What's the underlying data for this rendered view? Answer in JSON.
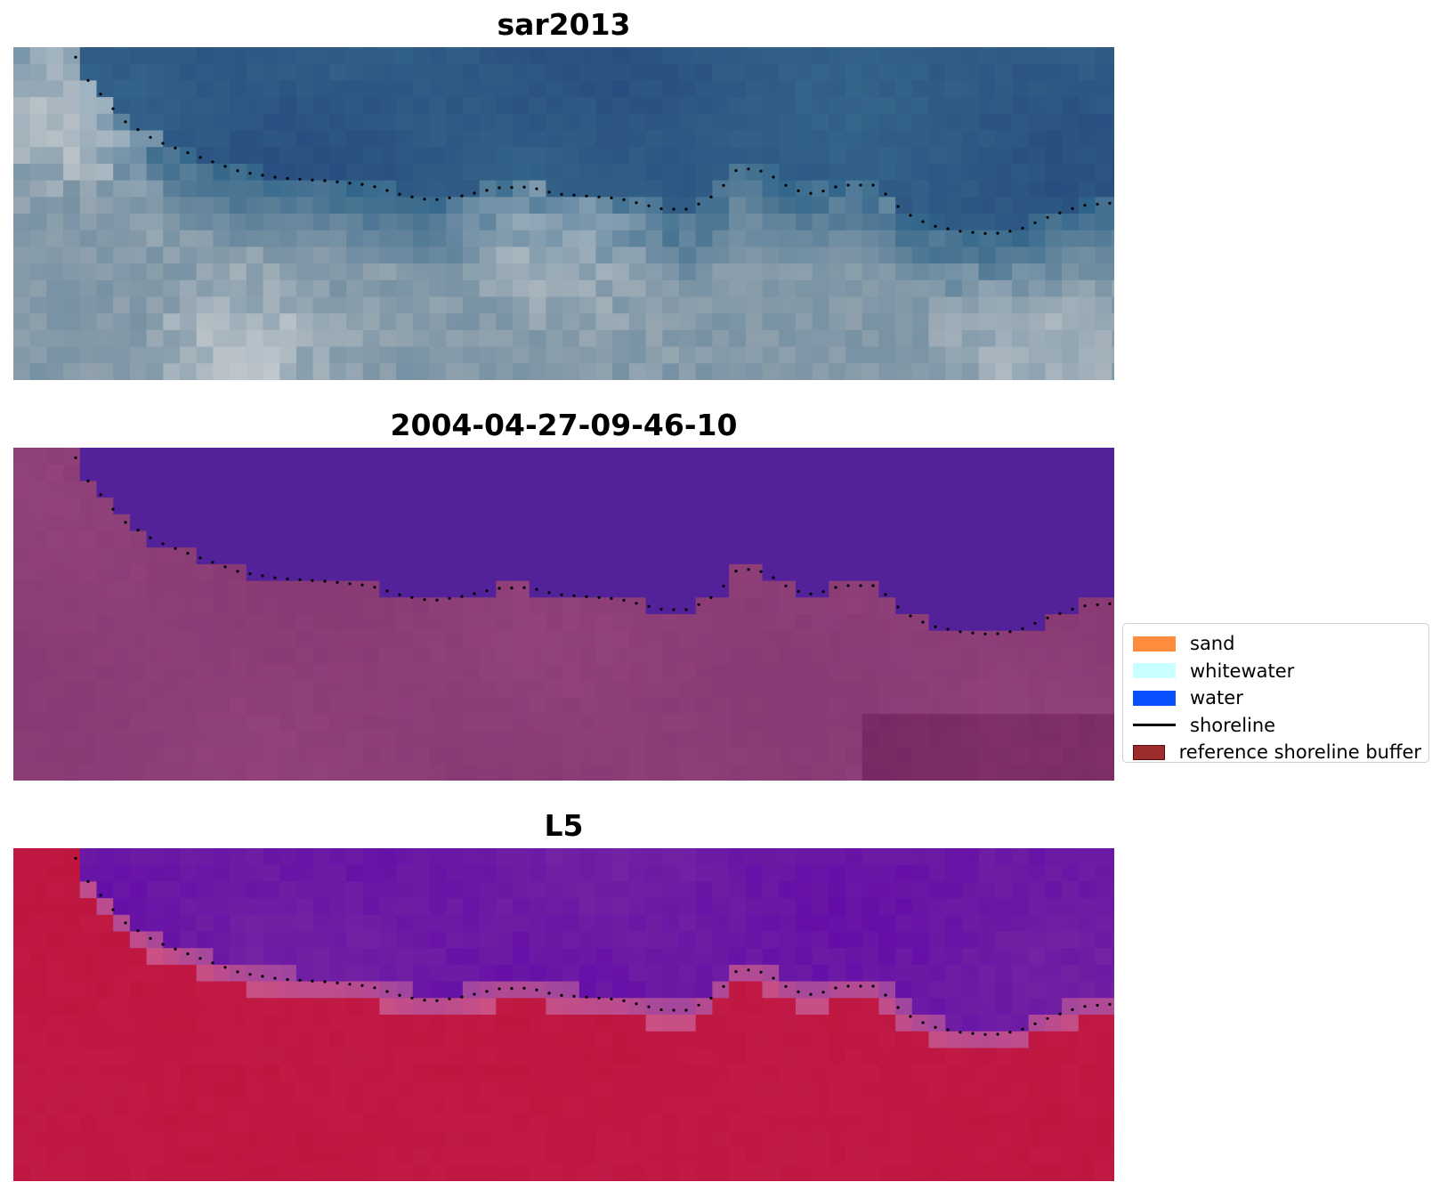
{
  "panels": [
    {
      "title": "sar2013",
      "scheme": "rgb"
    },
    {
      "title": "2004-04-27-09-46-10",
      "scheme": "classified"
    },
    {
      "title": "L5",
      "scheme": "index"
    }
  ],
  "legend": {
    "items": [
      {
        "label": "sand",
        "color": "#ff8c3c",
        "kind": "patch"
      },
      {
        "label": "whitewater",
        "color": "#c8ffff",
        "kind": "patch"
      },
      {
        "label": "water",
        "color": "#0a50ff",
        "kind": "patch"
      },
      {
        "label": "shoreline",
        "color": "#000000",
        "kind": "line"
      },
      {
        "label": "reference shoreline buffer",
        "color": "#9b2d2d",
        "kind": "patch"
      }
    ]
  },
  "colors": {
    "classified_water": "#53229b",
    "classified_land": "#893a74",
    "index_water": "#7323a3",
    "index_land": "#c01b47",
    "shoreline_dots": "#000000"
  }
}
